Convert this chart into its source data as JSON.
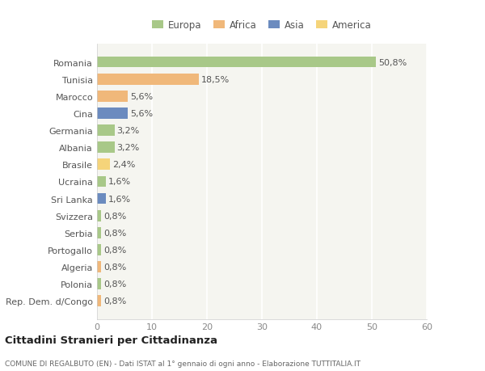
{
  "countries": [
    "Romania",
    "Tunisia",
    "Marocco",
    "Cina",
    "Germania",
    "Albania",
    "Brasile",
    "Ucraina",
    "Sri Lanka",
    "Svizzera",
    "Serbia",
    "Portogallo",
    "Algeria",
    "Polonia",
    "Rep. Dem. d/Congo"
  ],
  "values": [
    50.8,
    18.5,
    5.6,
    5.6,
    3.2,
    3.2,
    2.4,
    1.6,
    1.6,
    0.8,
    0.8,
    0.8,
    0.8,
    0.8,
    0.8
  ],
  "labels": [
    "50,8%",
    "18,5%",
    "5,6%",
    "5,6%",
    "3,2%",
    "3,2%",
    "2,4%",
    "1,6%",
    "1,6%",
    "0,8%",
    "0,8%",
    "0,8%",
    "0,8%",
    "0,8%",
    "0,8%"
  ],
  "colors": [
    "#a8c888",
    "#f0b87a",
    "#f0b87a",
    "#6b8bbf",
    "#a8c888",
    "#a8c888",
    "#f5d47a",
    "#a8c888",
    "#6b8bbf",
    "#a8c888",
    "#a8c888",
    "#a8c888",
    "#f0b87a",
    "#a8c888",
    "#f0b87a"
  ],
  "legend_labels": [
    "Europa",
    "Africa",
    "Asia",
    "America"
  ],
  "legend_colors": [
    "#a8c888",
    "#f0b87a",
    "#6b8bbf",
    "#f5d47a"
  ],
  "xlim": [
    0,
    60
  ],
  "xticks": [
    0,
    10,
    20,
    30,
    40,
    50,
    60
  ],
  "title": "Cittadini Stranieri per Cittadinanza",
  "subtitle": "COMUNE DI REGALBUTO (EN) - Dati ISTAT al 1° gennaio di ogni anno - Elaborazione TUTTITALIA.IT",
  "bg_color": "#ffffff",
  "plot_bg_color": "#f5f5f0",
  "grid_color": "#ffffff",
  "bar_height": 0.65,
  "label_fontsize": 8,
  "ytick_fontsize": 8,
  "xtick_fontsize": 8
}
